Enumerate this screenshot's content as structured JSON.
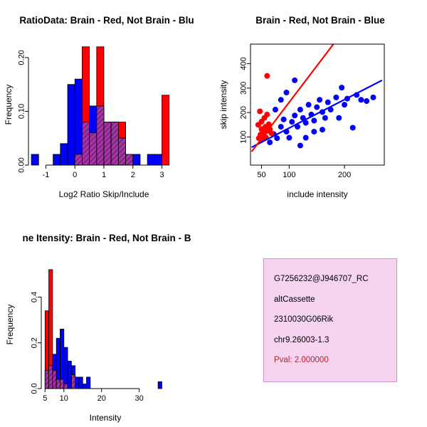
{
  "figure": {
    "background": "#FFFFFF"
  },
  "chart_data": [
    {
      "type": "bar",
      "title": "RatioData: Brain - Red, Not Brain - Blu",
      "xlabel": "Log2 Ratio Skip/Include",
      "ylabel": "Frequency",
      "xlim": [
        -1.6,
        3.6
      ],
      "ylim": [
        0,
        0.225
      ],
      "xtick_values": [
        -1,
        0,
        1,
        2,
        3
      ],
      "xtick_labels": [
        "-1",
        "0",
        "1",
        "2",
        "3"
      ],
      "ytick_values": [
        0,
        0.1,
        0.2
      ],
      "ytick_labels": [
        "0.00",
        "0.10",
        "0.20"
      ],
      "bins_start": -1.5,
      "bin_width": 0.25,
      "grid": false,
      "series": [
        {
          "name": "Not Brain",
          "color": "#0000FF",
          "values": [
            0.02,
            0,
            0,
            0.02,
            0.04,
            0.15,
            0.16,
            0.08,
            0.11,
            0.11,
            0.08,
            0.08,
            0.05,
            0.02,
            0.02,
            0,
            0.02,
            0.02,
            0,
            0
          ]
        },
        {
          "name": "Brain",
          "color": "#FF0000",
          "values": [
            0,
            0,
            0,
            0,
            0,
            0,
            0.02,
            0.22,
            0.06,
            0.22,
            0.08,
            0.08,
            0.08,
            0.02,
            0,
            0,
            0,
            0,
            0.13,
            0
          ]
        }
      ],
      "overlap": {
        "fill": "#A435A4",
        "hatch": "#5E0E5E"
      }
    },
    {
      "type": "scatter",
      "title": "Brain - Red, Not Brain - Blue",
      "xlabel": "include intensity",
      "ylabel": "skip intensity",
      "xlim": [
        30,
        272
      ],
      "ylim": [
        -15,
        480
      ],
      "xtick_values": [
        50,
        100,
        200
      ],
      "xtick_labels": [
        "50",
        "100",
        "200"
      ],
      "ytick_values": [
        100,
        200,
        300,
        400
      ],
      "ytick_labels": [
        "100",
        "200",
        "300",
        "400"
      ],
      "grid": false,
      "series": [
        {
          "name": "Not Brain",
          "color": "#0000FF",
          "points": [
            [
              65,
              78
            ],
            [
              72,
              112
            ],
            [
              78,
              95
            ],
            [
              85,
              142
            ],
            [
              90,
              172
            ],
            [
              95,
              122
            ],
            [
              100,
              97
            ],
            [
              105,
              162
            ],
            [
              110,
              188
            ],
            [
              115,
              142
            ],
            [
              120,
              212
            ],
            [
              125,
              178
            ],
            [
              130,
              158
            ],
            [
              135,
              232
            ],
            [
              140,
              192
            ],
            [
              145,
              167
            ],
            [
              150,
              222
            ],
            [
              155,
              252
            ],
            [
              160,
              202
            ],
            [
              165,
              178
            ],
            [
              170,
              242
            ],
            [
              175,
              212
            ],
            [
              185,
              262
            ],
            [
              190,
              178
            ],
            [
              195,
              302
            ],
            [
              200,
              232
            ],
            [
              205,
              257
            ],
            [
              215,
              138
            ],
            [
              222,
              272
            ],
            [
              230,
              252
            ],
            [
              240,
              247
            ],
            [
              252,
              262
            ],
            [
              110,
              332
            ],
            [
              95,
              282
            ],
            [
              85,
              252
            ],
            [
              75,
              212
            ],
            [
              130,
              97
            ],
            [
              145,
              122
            ],
            [
              120,
              65
            ],
            [
              160,
              130
            ]
          ]
        },
        {
          "name": "Brain",
          "color": "#FF0000",
          "points": [
            [
              45,
              95
            ],
            [
              50,
              88
            ],
            [
              52,
              100
            ],
            [
              48,
              110
            ],
            [
              55,
              118
            ],
            [
              60,
              125
            ],
            [
              50,
              132
            ],
            [
              57,
              142
            ],
            [
              63,
              152
            ],
            [
              50,
              163
            ],
            [
              55,
              178
            ],
            [
              60,
              192
            ],
            [
              47,
              205
            ],
            [
              65,
              132
            ],
            [
              58,
              98
            ],
            [
              53,
              122
            ],
            [
              44,
              150
            ],
            [
              60,
              350
            ],
            [
              68,
              115
            ]
          ]
        }
      ],
      "fit_lines": [
        {
          "name": "not-brain-fit",
          "color": "#0000FF",
          "points": [
            [
              32,
              58
            ],
            [
              268,
              332
            ]
          ]
        },
        {
          "name": "brain-fit",
          "color": "#FF0000",
          "points": [
            [
              32,
              40
            ],
            [
              185,
              495
            ]
          ]
        }
      ]
    },
    {
      "type": "bar",
      "title": "ne Itensity: Brain - Red, Not Brain - B",
      "xlabel": "Intensity",
      "ylabel": "Frequency",
      "xlim": [
        4,
        38
      ],
      "ylim": [
        0,
        0.56
      ],
      "xtick_values": [
        5,
        10,
        20,
        30
      ],
      "xtick_labels": [
        "5",
        "10",
        "20",
        "30"
      ],
      "ytick_values": [
        0,
        0.2,
        0.4
      ],
      "ytick_labels": [
        "0.0",
        "0.2",
        "0.4"
      ],
      "bins_start": 5,
      "bin_width": 1,
      "grid": false,
      "series": [
        {
          "name": "Not Brain",
          "color": "#0000FF",
          "values": [
            0.08,
            0.1,
            0.15,
            0.22,
            0.26,
            0.18,
            0.12,
            0.1,
            0.05,
            0.05,
            0.02,
            0.05,
            0,
            0,
            0,
            0,
            0,
            0,
            0,
            0,
            0,
            0,
            0,
            0,
            0,
            0,
            0,
            0,
            0,
            0,
            0.03
          ]
        },
        {
          "name": "Brain",
          "color": "#FF0000",
          "values": [
            0.34,
            0.52,
            0.08,
            0.04,
            0.04,
            0.02,
            0,
            0.06,
            0,
            0,
            0,
            0,
            0,
            0,
            0,
            0,
            0,
            0,
            0,
            0,
            0,
            0,
            0,
            0,
            0,
            0,
            0,
            0,
            0,
            0,
            0
          ]
        }
      ],
      "overlap": {
        "fill": "#A435A4",
        "hatch": "#5E0E5E"
      }
    }
  ],
  "info_box": {
    "bg_color": "#F6D4F0",
    "border_color": "#D48FD0",
    "lines": [
      "G7256232@J946707_RC",
      "altCassette",
      "2310030G06Rik",
      "chr9.26003-1.3"
    ],
    "pval": "Pval: 2.000000",
    "pval_color": "#B22222"
  }
}
